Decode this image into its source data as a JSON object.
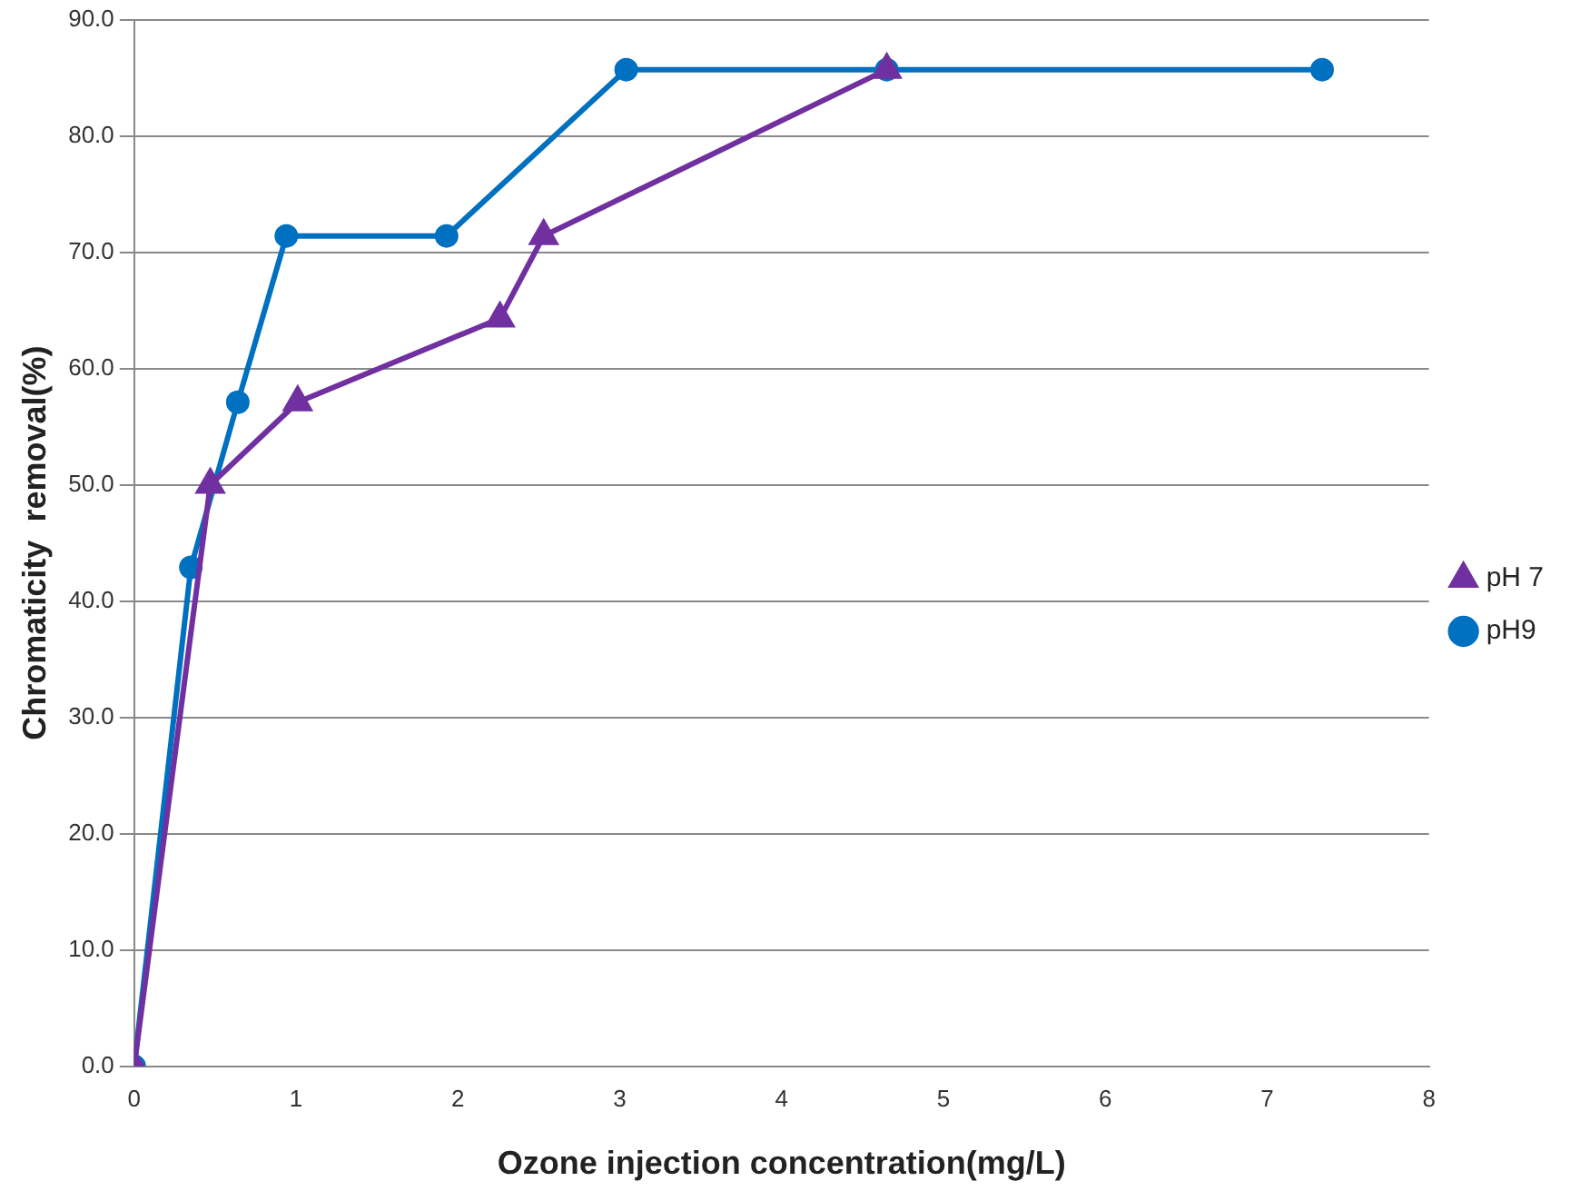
{
  "chart_data": {
    "type": "line",
    "xlabel": "Ozone injection concentration(mg/L)",
    "ylabel": "Chromaticity  removal(%)",
    "xlim": [
      0,
      8
    ],
    "xticks": [
      0,
      1,
      2,
      3,
      4,
      5,
      6,
      7,
      8
    ],
    "ylim": [
      0,
      90
    ],
    "yticks": [
      {
        "value": 0,
        "label": "0.0"
      },
      {
        "value": 10,
        "label": "10.0"
      },
      {
        "value": 20,
        "label": "20.0"
      },
      {
        "value": 30,
        "label": "30.0"
      },
      {
        "value": 40,
        "label": "40.0"
      },
      {
        "value": 50,
        "label": "50.0"
      },
      {
        "value": 60,
        "label": "60.0"
      },
      {
        "value": 70,
        "label": "70.0"
      },
      {
        "value": 80,
        "label": "80.0"
      },
      {
        "value": 90,
        "label": "90.0"
      }
    ],
    "grid": "y",
    "legend": "right",
    "series": [
      {
        "name": "pH 7",
        "color": "#7030a0",
        "marker": "triangle",
        "x": [
          0,
          0.47,
          1.01,
          2.26,
          2.53,
          4.65
        ],
        "values": [
          0,
          50,
          57.1,
          64.3,
          71.4,
          85.7
        ]
      },
      {
        "name": "pH9",
        "color": "#0070c0",
        "marker": "circle",
        "x": [
          0,
          0.35,
          0.64,
          0.94,
          1.93,
          3.04,
          4.65,
          7.34
        ],
        "values": [
          0,
          42.9,
          57.1,
          71.4,
          71.4,
          85.7,
          85.7,
          85.7
        ]
      }
    ]
  }
}
